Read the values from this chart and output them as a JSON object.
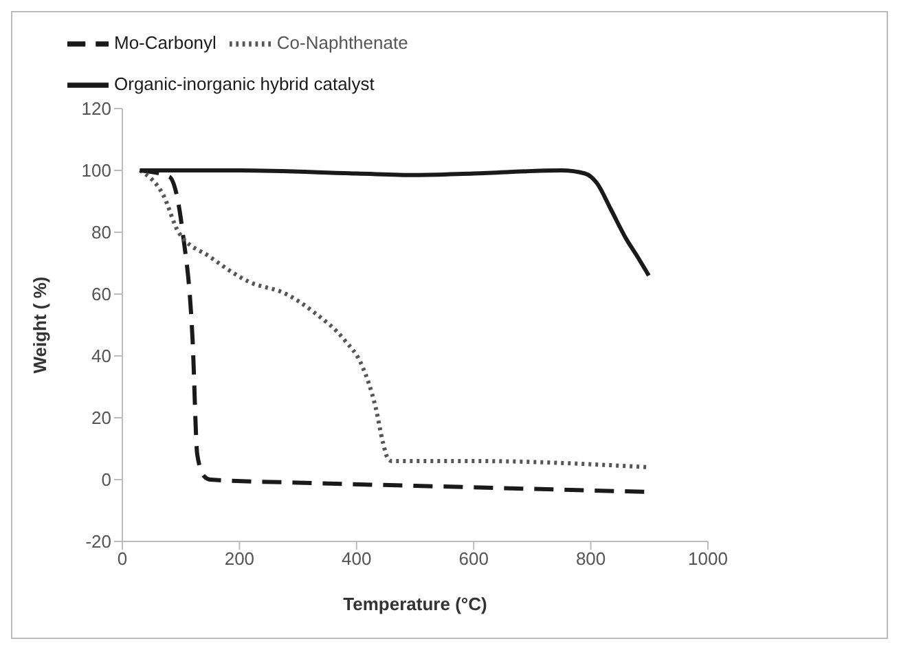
{
  "chart_data": {
    "type": "line",
    "xlabel": "Temperature (°C)",
    "ylabel": "Weight ( %)",
    "xlim": [
      0,
      1000
    ],
    "xticks": [
      0,
      200,
      400,
      600,
      800,
      1000
    ],
    "ylim": [
      -20,
      120
    ],
    "yticks": [
      -20,
      0,
      20,
      40,
      60,
      80,
      100,
      120
    ],
    "grid": false,
    "legend": "top left",
    "marker": "none",
    "series": [
      {
        "name": "Mo-Carbonyl",
        "color": "#1a1a1a",
        "line_style": "dashed",
        "x": [
          30,
          80,
          103,
          120,
          128,
          140,
          150,
          300,
          500,
          700,
          900
        ],
        "values": [
          100,
          98,
          80,
          45,
          8,
          1,
          0,
          -1,
          -2,
          -3,
          -4
        ]
      },
      {
        "name": "Co-Naphthenate",
        "color": "#555555",
        "line_style": "dotted",
        "x": [
          30,
          70,
          96,
          150,
          216,
          280,
          328,
          380,
          409,
          433,
          445,
          453,
          460,
          600,
          900
        ],
        "values": [
          100,
          92,
          80,
          72,
          64,
          60,
          54,
          45,
          37,
          23,
          12,
          7,
          6,
          6,
          4
        ]
      },
      {
        "name": "Organic-inorganic  hybrid catalyst",
        "color": "#1a1a1a",
        "line_style": "solid",
        "x": [
          30,
          200,
          400,
          500,
          600,
          750,
          790,
          810,
          834,
          860,
          880,
          899
        ],
        "values": [
          100,
          100,
          99,
          98.5,
          99,
          100,
          99,
          96,
          87.5,
          78,
          72,
          66
        ]
      }
    ]
  }
}
